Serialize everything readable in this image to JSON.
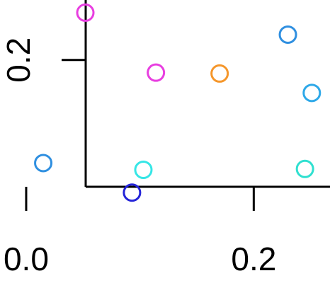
{
  "chart_data": {
    "type": "scatter",
    "title": "",
    "xlabel": "",
    "ylabel": "",
    "xlim": [
      -0.023,
      0.267
    ],
    "ylim": [
      -0.064,
      0.271
    ],
    "x_ticks": [
      {
        "value": 0.0,
        "label": "0.0"
      },
      {
        "value": 0.2,
        "label": "0.2"
      }
    ],
    "y_ticks": [
      {
        "value": 0.2,
        "label": "0.2"
      }
    ],
    "grid": false,
    "legend": "none",
    "points": [
      {
        "x": 0.052,
        "y": 0.256,
        "color": "#e83ee0"
      },
      {
        "x": 0.114,
        "y": 0.185,
        "color": "#e83ee0"
      },
      {
        "x": 0.17,
        "y": 0.184,
        "color": "#f5962a"
      },
      {
        "x": 0.23,
        "y": 0.23,
        "color": "#2f8fe0"
      },
      {
        "x": 0.251,
        "y": 0.161,
        "color": "#2ea8e8"
      },
      {
        "x": 0.015,
        "y": 0.078,
        "color": "#2f8fe0"
      },
      {
        "x": 0.103,
        "y": 0.07,
        "color": "#36e6e6"
      },
      {
        "x": 0.093,
        "y": 0.043,
        "color": "#2424d8"
      },
      {
        "x": 0.245,
        "y": 0.071,
        "color": "#30e0d0"
      }
    ]
  }
}
